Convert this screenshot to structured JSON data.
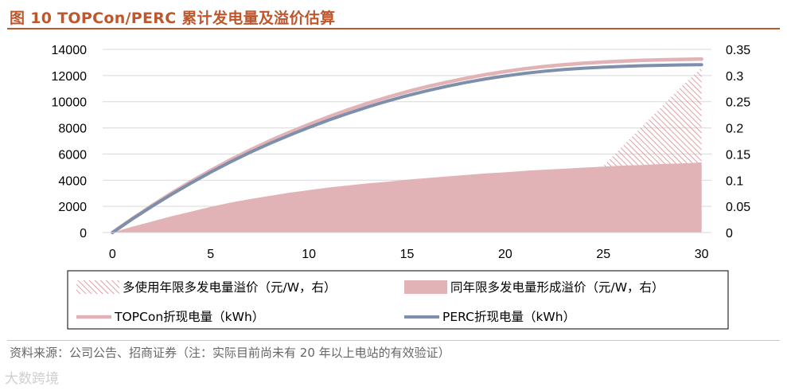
{
  "figure": {
    "title": "图 10 TOPCon/PERC 累计发电量及溢价估算",
    "source": "资料来源：公司公告、招商证券（注：实际目前尚未有 20 年以上电站的有效验证）",
    "watermark": "大数跨境"
  },
  "colors": {
    "title": "#c0562c",
    "topcon": "#e2b3b6",
    "perc": "#7d8fab",
    "premium_fill": "#e2b3b6",
    "hatch": "#d9888e"
  },
  "chart_data": {
    "type": "area+line",
    "x": [
      0,
      1,
      2,
      3,
      4,
      5,
      6,
      7,
      8,
      9,
      10,
      11,
      12,
      13,
      14,
      15,
      16,
      17,
      18,
      19,
      20,
      21,
      22,
      23,
      24,
      25,
      26,
      27,
      28,
      29,
      30
    ],
    "xlim": [
      -0.5,
      30.5
    ],
    "x_ticks": [
      "0",
      "5",
      "10",
      "15",
      "20",
      "25",
      "30"
    ],
    "x_tick_values": [
      0,
      5,
      10,
      15,
      20,
      25,
      30
    ],
    "y_left": {
      "label": "",
      "ylim": [
        0,
        14000
      ],
      "ticks": [
        "0",
        "2000",
        "4000",
        "6000",
        "8000",
        "10000",
        "12000",
        "14000"
      ],
      "tick_values": [
        0,
        2000,
        4000,
        6000,
        8000,
        10000,
        12000,
        14000
      ]
    },
    "y_right": {
      "label": "",
      "ylim": [
        0,
        0.35
      ],
      "ticks": [
        "0",
        "0.05",
        "0.1",
        "0.15",
        "0.2",
        "0.25",
        "0.3",
        "0.35"
      ],
      "tick_values": [
        0,
        0.05,
        0.1,
        0.15,
        0.2,
        0.25,
        0.3,
        0.35
      ]
    },
    "series": [
      {
        "name": "多使用年限多发电量溢价（元/W，右）",
        "type": "hatched-area",
        "axis": "right",
        "x": [
          25,
          26,
          27,
          28,
          29,
          30
        ],
        "values": [
          0.127,
          0.166,
          0.204,
          0.242,
          0.28,
          0.315
        ]
      },
      {
        "name": "同年限多发电量形成溢价（元/W，右）",
        "type": "area",
        "axis": "right",
        "values": [
          0,
          0.011,
          0.021,
          0.031,
          0.04,
          0.049,
          0.057,
          0.064,
          0.07,
          0.076,
          0.081,
          0.086,
          0.09,
          0.094,
          0.097,
          0.101,
          0.104,
          0.107,
          0.11,
          0.113,
          0.115,
          0.118,
          0.12,
          0.122,
          0.124,
          0.126,
          0.128,
          0.129,
          0.131,
          0.132,
          0.134
        ]
      },
      {
        "name": "TOPCon折现电量（kWh）",
        "type": "line",
        "axis": "left",
        "values": [
          0,
          1050,
          2050,
          3000,
          3900,
          4750,
          5550,
          6300,
          7000,
          7650,
          8260,
          8840,
          9380,
          9880,
          10340,
          10760,
          11140,
          11480,
          11790,
          12070,
          12310,
          12520,
          12690,
          12830,
          12940,
          13030,
          13100,
          13160,
          13200,
          13230,
          13260
        ]
      },
      {
        "name": "PERC折现电量（kWh）",
        "type": "line",
        "axis": "left",
        "values": [
          0,
          1020,
          1990,
          2910,
          3780,
          4610,
          5390,
          6120,
          6800,
          7430,
          8030,
          8590,
          9110,
          9600,
          10050,
          10460,
          10830,
          11170,
          11470,
          11740,
          11970,
          12170,
          12330,
          12460,
          12560,
          12640,
          12700,
          12750,
          12780,
          12810,
          12830
        ]
      }
    ],
    "legend": {
      "position": "bottom",
      "items": [
        "多使用年限多发电量溢价（元/W，右）",
        "同年限多发电量形成溢价（元/W，右）",
        "TOPCon折现电量（kWh）",
        "PERC折现电量（kWh）"
      ]
    }
  }
}
